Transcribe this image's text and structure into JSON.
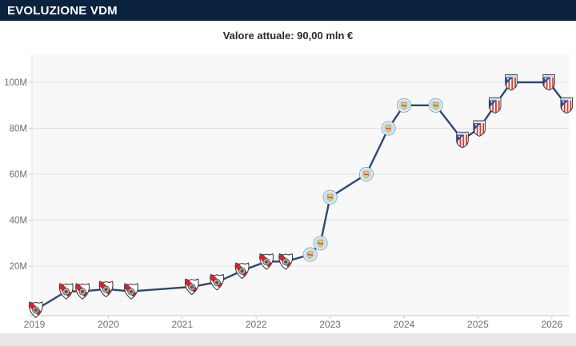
{
  "header": {
    "title": "EVOLUZIONE VDM"
  },
  "subtitle": "Valore attuale: 90,00 mln €",
  "colors": {
    "header_bg": "#0c2340",
    "header_text": "#ffffff",
    "subtitle_text": "#2b2b2b",
    "line": "#2b4a6f",
    "plot_bg": "#f8f8f8",
    "grid": "#e2e2e2",
    "axis": "#c9c9c9",
    "tick_label": "#6e6e6e",
    "bottom_strip": "#e8e8e8",
    "river_red": "#d8232a",
    "city_light_blue": "#c4def0",
    "city_gold": "#e8c76b",
    "atletico_red": "#d2412e",
    "atletico_blue": "#2e4d9b"
  },
  "chart_data": {
    "type": "line",
    "title": "Evoluzione VDM",
    "subtitle": "Valore attuale: 90,00 mln €",
    "unit": "mln €",
    "grid": true,
    "legend": "none",
    "xlim": [
      2018.97,
      2026.25
    ],
    "ylim": [
      0,
      112
    ],
    "x_tick_labels": [
      "2019",
      "2020",
      "2021",
      "2022",
      "2023",
      "2024",
      "2025",
      "2026"
    ],
    "x_tick_years": [
      2019,
      2020,
      2021,
      2022,
      2023,
      2024,
      2025,
      2026
    ],
    "y_tick_labels": [
      "20M",
      "40M",
      "60M",
      "80M",
      "100M"
    ],
    "y_tick_values": [
      20,
      40,
      60,
      80,
      100
    ],
    "points": [
      {
        "year": 2019.02,
        "value_mln": 1,
        "club": "river-plate",
        "club_name": "River Plate"
      },
      {
        "year": 2019.43,
        "value_mln": 9,
        "club": "river-plate",
        "club_name": "River Plate"
      },
      {
        "year": 2019.65,
        "value_mln": 9,
        "club": "river-plate",
        "club_name": "River Plate"
      },
      {
        "year": 2019.97,
        "value_mln": 10,
        "club": "river-plate",
        "club_name": "River Plate"
      },
      {
        "year": 2020.31,
        "value_mln": 9,
        "club": "river-plate",
        "club_name": "River Plate"
      },
      {
        "year": 2021.13,
        "value_mln": 11,
        "club": "river-plate",
        "club_name": "River Plate"
      },
      {
        "year": 2021.47,
        "value_mln": 13,
        "club": "river-plate",
        "club_name": "River Plate"
      },
      {
        "year": 2021.81,
        "value_mln": 18,
        "club": "river-plate",
        "club_name": "River Plate"
      },
      {
        "year": 2022.14,
        "value_mln": 22,
        "club": "river-plate",
        "club_name": "River Plate"
      },
      {
        "year": 2022.4,
        "value_mln": 22,
        "club": "river-plate",
        "club_name": "River Plate"
      },
      {
        "year": 2022.73,
        "value_mln": 25,
        "club": "manchester-city",
        "club_name": "Manchester City"
      },
      {
        "year": 2022.87,
        "value_mln": 30,
        "club": "manchester-city",
        "club_name": "Manchester City"
      },
      {
        "year": 2023.0,
        "value_mln": 50,
        "club": "manchester-city",
        "club_name": "Manchester City"
      },
      {
        "year": 2023.49,
        "value_mln": 60,
        "club": "manchester-city",
        "club_name": "Manchester City"
      },
      {
        "year": 2023.79,
        "value_mln": 80,
        "club": "manchester-city",
        "club_name": "Manchester City"
      },
      {
        "year": 2024.0,
        "value_mln": 90,
        "club": "manchester-city",
        "club_name": "Manchester City"
      },
      {
        "year": 2024.43,
        "value_mln": 90,
        "club": "manchester-city",
        "club_name": "Manchester City"
      },
      {
        "year": 2024.79,
        "value_mln": 75,
        "club": "atletico-madrid",
        "club_name": "Atlético Madrid"
      },
      {
        "year": 2025.02,
        "value_mln": 80,
        "club": "atletico-madrid",
        "club_name": "Atlético Madrid"
      },
      {
        "year": 2025.23,
        "value_mln": 90,
        "club": "atletico-madrid",
        "club_name": "Atlético Madrid"
      },
      {
        "year": 2025.45,
        "value_mln": 100,
        "club": "atletico-madrid",
        "club_name": "Atlético Madrid"
      },
      {
        "year": 2025.96,
        "value_mln": 100,
        "club": "atletico-madrid",
        "club_name": "Atlético Madrid"
      },
      {
        "year": 2026.2,
        "value_mln": 90,
        "club": "atletico-madrid",
        "club_name": "Atlético Madrid"
      }
    ]
  }
}
